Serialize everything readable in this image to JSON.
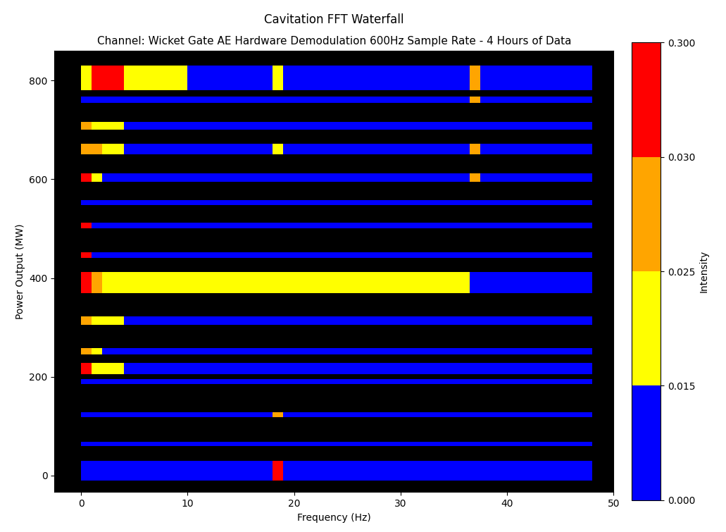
{
  "chart_data": {
    "type": "heatmap",
    "title": "Cavitation FFT Waterfall",
    "subtitle": "Channel: Wicket Gate AE Hardware Demodulation 600Hz Sample Rate - 4 Hours of Data",
    "x_label": "Frequency (Hz)",
    "y_label": "Power Output (MW)",
    "xlim": [
      -2.5,
      50
    ],
    "xticks": [
      0,
      10,
      20,
      30,
      40,
      50
    ],
    "ylim": [
      -34,
      861
    ],
    "yticks": [
      0,
      200,
      400,
      600,
      800
    ],
    "x_edges": [
      0,
      1,
      2,
      4,
      10,
      18,
      19,
      36.5,
      37.5,
      48
    ],
    "y_edges": [
      -10,
      30,
      60,
      68,
      118,
      128,
      185,
      195,
      205,
      228,
      245,
      258,
      305,
      322,
      370,
      412,
      440,
      452,
      500,
      512,
      548,
      558,
      595,
      612,
      650,
      672,
      700,
      716,
      755,
      768,
      780,
      830
    ],
    "cells": [
      [
        0.005,
        0.005,
        0.005,
        0.005,
        0.005,
        0.05,
        0.005,
        0.005,
        0.005
      ],
      null,
      [
        0.005,
        0.005,
        0.005,
        0.005,
        0.005,
        0.005,
        0.005,
        0.005,
        0.005
      ],
      null,
      [
        0.005,
        0.005,
        0.005,
        0.005,
        0.005,
        0.028,
        0.005,
        0.005,
        0.005
      ],
      null,
      [
        0.005,
        0.005,
        0.005,
        0.005,
        0.005,
        0.005,
        0.005,
        0.005,
        0.005
      ],
      null,
      [
        0.05,
        0.02,
        0.02,
        0.005,
        0.005,
        0.005,
        0.005,
        0.005,
        0.005
      ],
      null,
      [
        0.028,
        0.02,
        0.005,
        0.005,
        0.005,
        0.005,
        0.005,
        0.005,
        0.005
      ],
      null,
      [
        0.028,
        0.02,
        0.02,
        0.005,
        0.005,
        0.005,
        0.005,
        0.005,
        0.005
      ],
      null,
      [
        0.05,
        0.028,
        0.02,
        0.02,
        0.02,
        0.02,
        0.02,
        0.005,
        0.005
      ],
      null,
      [
        0.05,
        0.005,
        0.005,
        0.005,
        0.005,
        0.005,
        0.005,
        0.005,
        0.005
      ],
      null,
      [
        0.05,
        0.005,
        0.005,
        0.005,
        0.005,
        0.005,
        0.005,
        0.005,
        0.005
      ],
      null,
      [
        0.005,
        0.005,
        0.005,
        0.005,
        0.005,
        0.005,
        0.005,
        0.005,
        0.005
      ],
      null,
      [
        0.05,
        0.02,
        0.005,
        0.005,
        0.005,
        0.005,
        0.005,
        0.028,
        0.005
      ],
      null,
      [
        0.028,
        0.028,
        0.02,
        0.005,
        0.005,
        0.02,
        0.005,
        0.028,
        0.005
      ],
      null,
      [
        0.028,
        0.02,
        0.02,
        0.005,
        0.005,
        0.005,
        0.005,
        0.005,
        0.005
      ],
      null,
      [
        0.005,
        0.005,
        0.005,
        0.005,
        0.005,
        0.005,
        0.005,
        0.028,
        0.005
      ],
      null,
      [
        0.02,
        0.05,
        0.05,
        0.02,
        0.005,
        0.02,
        0.005,
        0.028,
        0.005
      ]
    ],
    "colorbar": {
      "label": "Intensity",
      "range": [
        0,
        0.3
      ],
      "colors": [
        "#0000ff",
        "#ffff00",
        "#ffa500",
        "#ff0000"
      ],
      "ticks": [
        {
          "value": 0,
          "label": "0.000"
        },
        {
          "value": 0.015,
          "label": "0.015"
        },
        {
          "value": 0.025,
          "label": "0.025"
        },
        {
          "value": 0.03,
          "label": "0.030"
        },
        {
          "value": 0.3,
          "label": "0.300"
        }
      ]
    }
  }
}
